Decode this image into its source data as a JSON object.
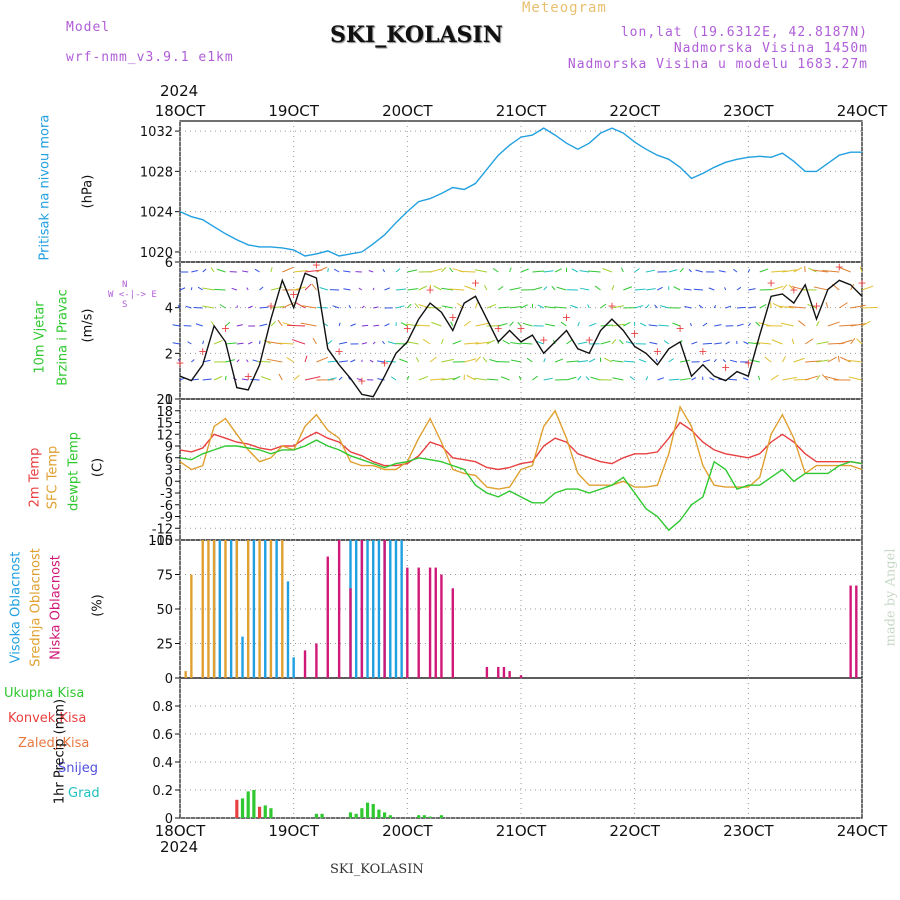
{
  "header": {
    "model_label": "Model",
    "model_name": "wrf-nmm_v3.9.1 e1km",
    "chart_title": "SKI_KOLASIN",
    "meteogram_label": "Meteogram",
    "lonlat": "lon,lat (19.6312E, 42.8187N)",
    "altitude": "Nadmorska Visina 1450m",
    "model_altitude": "Nadmorska Visina u modelu 1683.27m"
  },
  "footer": {
    "station": "SKI_KOLASIN"
  },
  "watermark": "made by Angel",
  "colors": {
    "pressure": "#22a0e0",
    "temp2m": "#e84040",
    "sfc": "#e0a030",
    "dewpt": "#30c830",
    "high_cloud": "#20a0e0",
    "mid_cloud": "#e0a030",
    "low_cloud": "#d01878",
    "total_precip": "#30c830",
    "conv_precip": "#e84040",
    "snow": "#5050e0",
    "hail": "#20c0c0"
  },
  "chart_data": {
    "type": "meteogram",
    "x_axis": {
      "year": "2024",
      "ticks": [
        "18OCT",
        "19OCT",
        "20OCT",
        "21OCT",
        "22OCT",
        "23OCT",
        "24OCT"
      ],
      "range_days": [
        0,
        6
      ]
    },
    "panels": [
      {
        "id": "pressure",
        "type": "line",
        "ylabel": [
          "Pritisak na nivou mora",
          "(hPa)"
        ],
        "ylim": [
          1019,
          1033
        ],
        "yticks": [
          1020,
          1024,
          1028,
          1032
        ],
        "grid": true,
        "series": [
          {
            "x": [
              0,
              0.1,
              0.2,
              0.3,
              0.4,
              0.5,
              0.6,
              0.7,
              0.8,
              0.9,
              1.0,
              1.1,
              1.2,
              1.3,
              1.4,
              1.5,
              1.6,
              1.7,
              1.8,
              1.9,
              2.0,
              2.1,
              2.2,
              2.3,
              2.4,
              2.5,
              2.6,
              2.7,
              2.8,
              2.9,
              3.0,
              3.1,
              3.2,
              3.3,
              3.4,
              3.5,
              3.6,
              3.7,
              3.8,
              3.9,
              4.0,
              4.1,
              4.2,
              4.3,
              4.4,
              4.5,
              4.6,
              4.7,
              4.8,
              4.9,
              5.0,
              5.1,
              5.2,
              5.3,
              5.4,
              5.5,
              5.6,
              5.7,
              5.8,
              5.9,
              6.0
            ],
            "y": [
              1024.0,
              1023.5,
              1023.2,
              1022.5,
              1021.8,
              1021.2,
              1020.7,
              1020.5,
              1020.5,
              1020.4,
              1020.2,
              1019.6,
              1019.8,
              1020.1,
              1019.6,
              1019.8,
              1020.0,
              1020.8,
              1021.7,
              1022.9,
              1024.0,
              1025.0,
              1025.3,
              1025.8,
              1026.4,
              1026.2,
              1026.8,
              1028.2,
              1029.6,
              1030.6,
              1031.4,
              1031.6,
              1032.3,
              1031.6,
              1030.8,
              1030.2,
              1030.8,
              1031.8,
              1032.3,
              1031.8,
              1030.9,
              1030.2,
              1029.6,
              1029.2,
              1028.4,
              1027.3,
              1027.8,
              1028.4,
              1028.9,
              1029.2,
              1029.4,
              1029.5,
              1029.4,
              1029.8,
              1029.0,
              1028.0,
              1028.0,
              1028.8,
              1029.6,
              1029.9,
              1029.9
            ]
          }
        ]
      },
      {
        "id": "wind",
        "type": "line",
        "ylabel": [
          "10m Vjetar",
          "Brzina i Pravac",
          "(m/s)"
        ],
        "legend_compass": [
          "N",
          "S",
          "W",
          "E"
        ],
        "ylim": [
          0,
          6
        ],
        "yticks": [
          0,
          2,
          4,
          6
        ],
        "grid": true,
        "series": [
          {
            "name": "speed",
            "x": [
              0,
              0.1,
              0.2,
              0.3,
              0.4,
              0.5,
              0.6,
              0.7,
              0.8,
              0.9,
              1.0,
              1.1,
              1.2,
              1.3,
              1.4,
              1.5,
              1.6,
              1.7,
              1.8,
              1.9,
              2.0,
              2.1,
              2.2,
              2.3,
              2.4,
              2.5,
              2.6,
              2.7,
              2.8,
              2.9,
              3.0,
              3.1,
              3.2,
              3.3,
              3.4,
              3.5,
              3.6,
              3.7,
              3.8,
              3.9,
              4.0,
              4.1,
              4.2,
              4.3,
              4.4,
              4.5,
              4.6,
              4.7,
              4.8,
              4.9,
              5.0,
              5.1,
              5.2,
              5.3,
              5.4,
              5.5,
              5.6,
              5.7,
              5.8,
              5.9,
              6.0
            ],
            "y": [
              1.0,
              0.8,
              1.5,
              3.2,
              2.5,
              0.5,
              0.4,
              1.5,
              3.5,
              5.2,
              4.0,
              5.5,
              5.3,
              2.2,
              1.5,
              0.9,
              0.2,
              0.1,
              1.0,
              2.0,
              2.5,
              3.5,
              4.2,
              3.8,
              3.0,
              4.2,
              4.5,
              3.5,
              2.5,
              3.0,
              2.5,
              2.8,
              2.0,
              2.5,
              3.0,
              2.2,
              2.0,
              3.0,
              3.5,
              3.0,
              2.3,
              2.0,
              1.5,
              2.2,
              2.5,
              1.0,
              1.5,
              1.0,
              0.8,
              1.2,
              1.0,
              2.8,
              4.5,
              4.6,
              4.2,
              5.0,
              3.5,
              4.8,
              5.2,
              5.0,
              4.5
            ]
          }
        ]
      },
      {
        "id": "temperature",
        "type": "line",
        "ylabel": [
          "2m Temp",
          "SFC Temp",
          "dewpt Temp",
          "(C)"
        ],
        "ylim": [
          -15,
          21
        ],
        "yticks": [
          -15,
          -12,
          -9,
          -6,
          -3,
          0,
          3,
          6,
          9,
          12,
          15,
          18,
          21
        ],
        "grid": true,
        "series": [
          {
            "name": "2m Temp",
            "x": [
              0,
              0.1,
              0.2,
              0.3,
              0.4,
              0.5,
              0.6,
              0.7,
              0.8,
              0.9,
              1.0,
              1.1,
              1.2,
              1.3,
              1.4,
              1.5,
              1.6,
              1.7,
              1.8,
              1.9,
              2.0,
              2.1,
              2.2,
              2.3,
              2.4,
              2.5,
              2.6,
              2.7,
              2.8,
              2.9,
              3.0,
              3.1,
              3.2,
              3.3,
              3.4,
              3.5,
              3.6,
              3.7,
              3.8,
              3.9,
              4.0,
              4.1,
              4.2,
              4.3,
              4.4,
              4.5,
              4.6,
              4.7,
              4.8,
              4.9,
              5.0,
              5.1,
              5.2,
              5.3,
              5.4,
              5.5,
              5.6,
              5.7,
              5.8,
              5.9,
              6.0
            ],
            "y": [
              8,
              7.5,
              8.5,
              12,
              11,
              10,
              9.5,
              8.5,
              8,
              9,
              9,
              11,
              12.5,
              11,
              10,
              7.5,
              6.5,
              5,
              4,
              4,
              4.5,
              6.5,
              10,
              9,
              6,
              5.5,
              5,
              3.5,
              3,
              3.5,
              4.5,
              5,
              9,
              11,
              10,
              7,
              6,
              5,
              4.5,
              6,
              7,
              7,
              7.5,
              11,
              15,
              13,
              10,
              8,
              7,
              6.5,
              6,
              7,
              10,
              12,
              10,
              7,
              5,
              5,
              5,
              5,
              4.5
            ]
          },
          {
            "name": "SFC Temp",
            "x": [
              0,
              0.1,
              0.2,
              0.3,
              0.4,
              0.5,
              0.6,
              0.7,
              0.8,
              0.9,
              1.0,
              1.1,
              1.2,
              1.3,
              1.4,
              1.5,
              1.6,
              1.7,
              1.8,
              1.9,
              2.0,
              2.1,
              2.2,
              2.3,
              2.4,
              2.5,
              2.6,
              2.7,
              2.8,
              2.9,
              3.0,
              3.1,
              3.2,
              3.3,
              3.4,
              3.5,
              3.6,
              3.7,
              3.8,
              3.9,
              4.0,
              4.1,
              4.2,
              4.3,
              4.4,
              4.5,
              4.6,
              4.7,
              4.8,
              4.9,
              5.0,
              5.1,
              5.2,
              5.3,
              5.4,
              5.5,
              5.6,
              5.7,
              5.8,
              5.9,
              6.0
            ],
            "y": [
              5,
              3,
              4,
              14,
              16,
              12,
              8,
              5,
              6,
              9,
              8,
              14,
              17,
              13,
              11,
              5,
              4,
              4,
              3,
              3,
              5,
              11,
              16,
              10,
              3,
              2,
              1.5,
              -1.5,
              -2,
              -1.5,
              3,
              4,
              14,
              18,
              11,
              2,
              -1,
              -1,
              -1,
              0,
              -1.5,
              -1.5,
              -1,
              7,
              19,
              14,
              4,
              -1,
              -1.5,
              -1.5,
              -1.5,
              1,
              12,
              17,
              11,
              2,
              4,
              4,
              4,
              4,
              3
            ]
          },
          {
            "name": "dewpt Temp",
            "x": [
              0,
              0.1,
              0.2,
              0.3,
              0.4,
              0.5,
              0.6,
              0.7,
              0.8,
              0.9,
              1.0,
              1.1,
              1.2,
              1.3,
              1.4,
              1.5,
              1.6,
              1.7,
              1.8,
              1.9,
              2.0,
              2.1,
              2.2,
              2.3,
              2.4,
              2.5,
              2.6,
              2.7,
              2.8,
              2.9,
              3.0,
              3.1,
              3.2,
              3.3,
              3.4,
              3.5,
              3.6,
              3.7,
              3.8,
              3.9,
              4.0,
              4.1,
              4.2,
              4.3,
              4.4,
              4.5,
              4.6,
              4.7,
              4.8,
              4.9,
              5.0,
              5.1,
              5.2,
              5.3,
              5.4,
              5.5,
              5.6,
              5.7,
              5.8,
              5.9,
              6.0
            ],
            "y": [
              6,
              5.5,
              7,
              8,
              9,
              9,
              8.5,
              8,
              7,
              8,
              8,
              9,
              10.5,
              9,
              8,
              6.5,
              5.5,
              4.5,
              3.5,
              4.5,
              5,
              6,
              5.5,
              5,
              4,
              3,
              -1,
              -3,
              -4,
              -2.5,
              -4,
              -5.5,
              -5.5,
              -3,
              -2,
              -2,
              -3,
              -2,
              -1,
              1,
              -3,
              -7,
              -9,
              -12.5,
              -10,
              -6,
              -4,
              5,
              3,
              -2,
              -1,
              -1,
              1,
              3,
              0,
              2,
              2,
              2,
              4,
              5,
              4.5
            ]
          }
        ]
      },
      {
        "id": "clouds",
        "type": "bar",
        "ylabel": [
          "Visoka Oblacnost",
          "Srednja Oblacnost",
          "Niska Oblacnost",
          "(%)"
        ],
        "ylim": [
          0,
          100
        ],
        "yticks": [
          0,
          25,
          50,
          75,
          100
        ],
        "grid": true,
        "series": [
          {
            "name": "Visoka Oblacnost",
            "x": [
              0.3,
              0.35,
              0.45,
              0.5,
              0.55,
              0.65,
              0.75,
              0.85,
              0.95,
              1.0,
              1.5,
              1.55,
              1.6,
              1.65,
              1.7,
              1.75,
              1.8,
              1.85,
              1.9,
              1.95
            ],
            "y": [
              100,
              100,
              100,
              100,
              30,
              100,
              100,
              100,
              70,
              15,
              100,
              100,
              100,
              100,
              100,
              100,
              100,
              100,
              100,
              100
            ]
          },
          {
            "name": "Srednja Oblacnost",
            "x": [
              0.05,
              0.1,
              0.2,
              0.25,
              0.3,
              0.4,
              0.5,
              0.6,
              0.7,
              0.8,
              0.9
            ],
            "y": [
              5,
              75,
              100,
              100,
              100,
              100,
              100,
              100,
              100,
              100,
              100
            ]
          },
          {
            "name": "Niska Oblacnost",
            "x": [
              1.1,
              1.2,
              1.3,
              1.4,
              1.5,
              1.6,
              1.8,
              2.0,
              2.1,
              2.2,
              2.25,
              2.3,
              2.4,
              2.7,
              2.8,
              2.85,
              2.9,
              3.0,
              5.9,
              5.95
            ],
            "y": [
              20,
              25,
              88,
              100,
              65,
              100,
              100,
              80,
              80,
              80,
              80,
              75,
              65,
              8,
              8,
              8,
              5,
              2,
              67,
              67
            ]
          }
        ]
      },
      {
        "id": "precip",
        "type": "bar",
        "ylabel": [
          "Ukupna Kisa",
          "Konvek.Kisa",
          "Zaledj.Kisa",
          "Snijeg",
          "Grad",
          "1hr Precip (mm)"
        ],
        "ylim": [
          0,
          1
        ],
        "yticks": [
          0,
          0.2,
          0.4,
          0.6,
          0.8
        ],
        "grid": true,
        "series": [
          {
            "name": "Ukupna Kisa",
            "x": [
              0.55,
              0.6,
              0.65,
              0.75,
              0.8,
              1.2,
              1.25,
              1.5,
              1.55,
              1.6,
              1.65,
              1.7,
              1.75,
              1.8,
              1.85,
              2.1,
              2.15,
              2.2,
              2.3
            ],
            "y": [
              0.14,
              0.19,
              0.2,
              0.09,
              0.07,
              0.03,
              0.03,
              0.04,
              0.03,
              0.07,
              0.11,
              0.1,
              0.06,
              0.04,
              0.02,
              0.02,
              0.02,
              0.01,
              0.02
            ]
          },
          {
            "name": "Konvek.Kisa",
            "x": [
              0.5,
              0.7
            ],
            "y": [
              0.13,
              0.08
            ]
          }
        ]
      }
    ]
  }
}
